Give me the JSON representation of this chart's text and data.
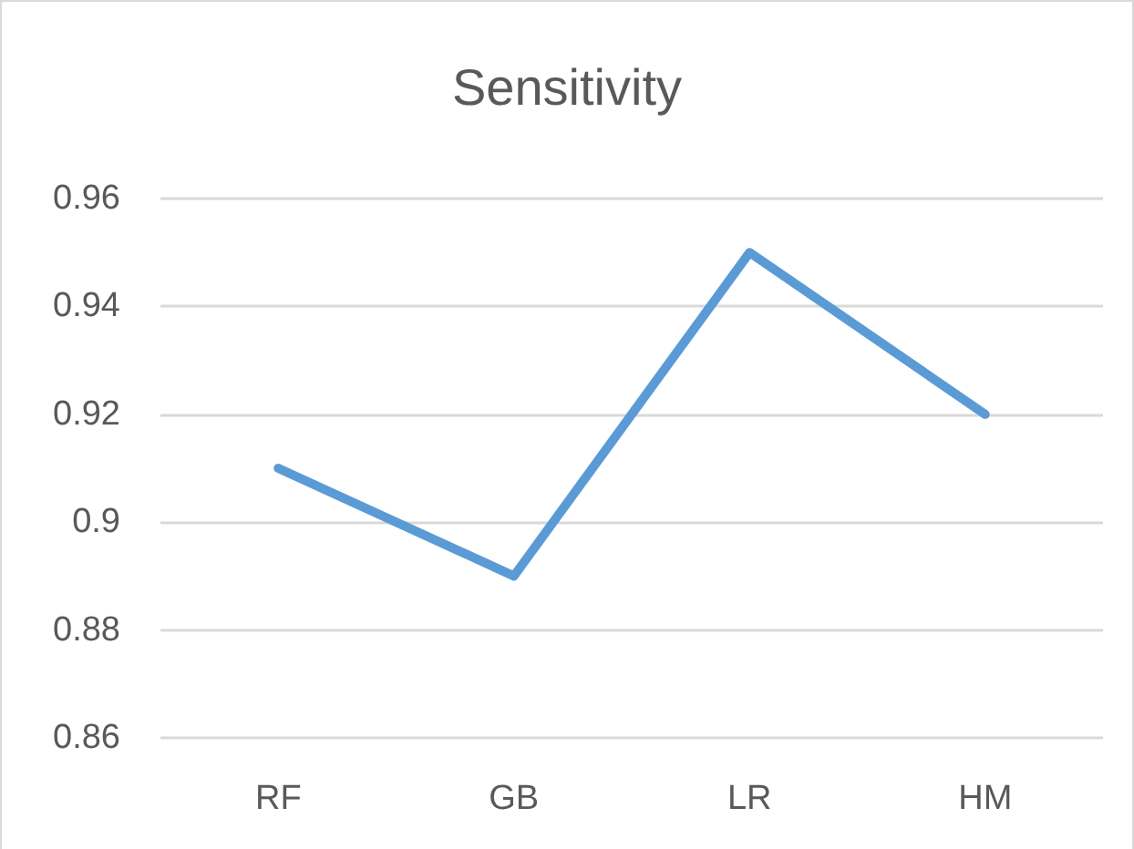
{
  "chart_data": {
    "type": "line",
    "title": "Sensitivity",
    "categories": [
      "RF",
      "GB",
      "LR",
      "HM"
    ],
    "series": [
      {
        "color": "#5b9bd5",
        "values": [
          0.91,
          0.89,
          0.95,
          0.92
        ]
      }
    ],
    "ylim": [
      0.86,
      0.96
    ],
    "yticks": [
      0.86,
      0.88,
      0.9,
      0.92,
      0.94,
      0.96
    ],
    "grid": "y",
    "marker": "none",
    "line_style": "solid"
  }
}
